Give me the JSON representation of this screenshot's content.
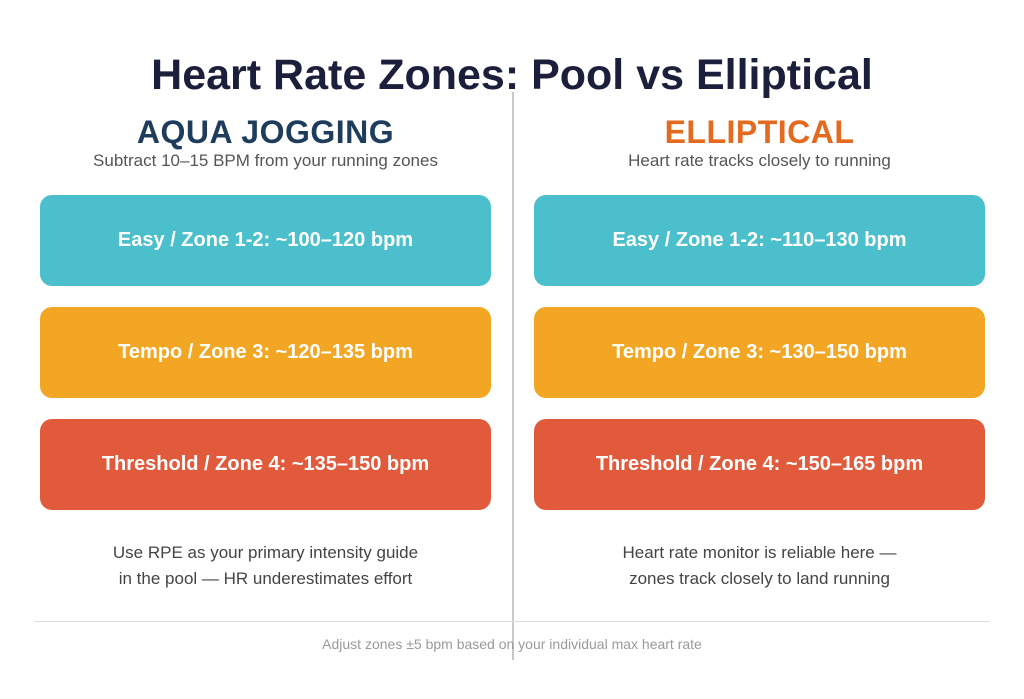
{
  "title": "Heart Rate Zones: Pool vs Elliptical",
  "left": {
    "heading": "AQUA JOGGING",
    "subtitle": "Subtract 10–15 BPM from your running zones",
    "zones": [
      {
        "label": "Easy / Zone 1-2: ~100–120 bpm",
        "color": "#4bbfcc"
      },
      {
        "label": "Tempo / Zone 3: ~120–135 bpm",
        "color": "#f2a623"
      },
      {
        "label": "Threshold / Zone 4: ~135–150 bpm",
        "color": "#e05a3b"
      }
    ],
    "note_line1": "Use RPE as your primary intensity guide",
    "note_line2": "in the pool — HR underestimates effort"
  },
  "right": {
    "heading": "ELLIPTICAL",
    "subtitle": "Heart rate tracks closely to running",
    "zones": [
      {
        "label": "Easy / Zone 1-2: ~110–130 bpm",
        "color": "#4bbfcc"
      },
      {
        "label": "Tempo / Zone 3: ~130–150 bpm",
        "color": "#f2a623"
      },
      {
        "label": "Threshold / Zone 4: ~150–165 bpm",
        "color": "#e05a3b"
      }
    ],
    "note_line1": "Heart rate monitor is reliable here —",
    "note_line2": "zones track closely to land running"
  },
  "footer": "Adjust zones ±5 bpm based on your individual max heart rate",
  "colors": {
    "title": "#1b1f3b",
    "left_heading": "#1e3d5c",
    "right_heading": "#e36a1f"
  }
}
